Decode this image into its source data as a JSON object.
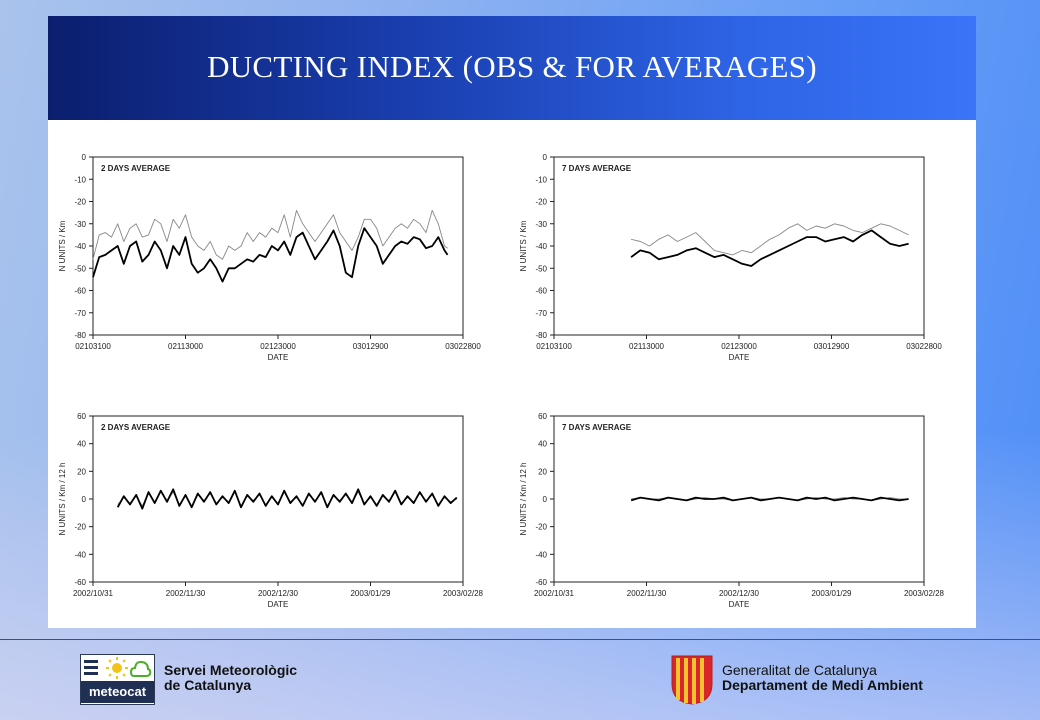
{
  "slide": {
    "title": "DUCTING INDEX (OBS & FOR AVERAGES)"
  },
  "colors": {
    "observed": "#000000",
    "forecast": "#888888",
    "title_bar": "#1a3fb0",
    "text": "#111111"
  },
  "chart_data": [
    {
      "type": "line",
      "title": "2 DAYS AVERAGE",
      "xlabel": "DATE",
      "ylabel": "N UNITS / Km",
      "ylim": [
        -80,
        0
      ],
      "yticks": [
        "0",
        "-10",
        "-20",
        "-30",
        "-40",
        "-50",
        "-60",
        "-70",
        "-80"
      ],
      "xticks": [
        "02103100",
        "02113000",
        "02123000",
        "03012900",
        "03022800"
      ],
      "xlim": [
        0,
        120
      ],
      "grid": false,
      "series": [
        {
          "values_x": [
            0,
            2,
            4,
            6,
            8,
            10,
            12,
            14,
            16,
            18,
            20,
            22,
            24,
            26,
            28,
            30,
            32,
            34,
            36,
            38,
            40,
            42,
            44,
            46,
            48,
            50,
            52,
            54,
            56,
            58,
            60,
            62,
            64,
            66,
            68,
            70,
            72,
            74,
            76,
            78,
            80,
            82,
            84,
            86,
            88,
            90,
            92,
            94,
            96,
            98,
            100,
            102,
            104,
            106,
            108,
            110,
            112,
            114,
            115
          ],
          "values": [
            -54,
            -45,
            -44,
            -42,
            -40,
            -48,
            -40,
            -38,
            -47,
            -44,
            -38,
            -42,
            -50,
            -40,
            -44,
            -36,
            -48,
            -52,
            -50,
            -46,
            -50,
            -56,
            -50,
            -50,
            -48,
            -46,
            -47,
            -44,
            -45,
            -40,
            -42,
            -38,
            -44,
            -36,
            -34,
            -40,
            -46,
            -42,
            -38,
            -33,
            -40,
            -52,
            -54,
            -40,
            -32,
            -36,
            -40,
            -48,
            -44,
            -40,
            -38,
            -39,
            -36,
            -37,
            -41,
            -40,
            -36,
            -42,
            -44
          ]
        },
        {
          "values_x": [
            0,
            2,
            4,
            6,
            8,
            10,
            12,
            14,
            16,
            18,
            20,
            22,
            24,
            26,
            28,
            30,
            32,
            34,
            36,
            38,
            40,
            42,
            44,
            46,
            48,
            50,
            52,
            54,
            56,
            58,
            60,
            62,
            64,
            66,
            68,
            70,
            72,
            74,
            76,
            78,
            80,
            82,
            84,
            86,
            88,
            90,
            92,
            94,
            96,
            98,
            100,
            102,
            104,
            106,
            108,
            110,
            112,
            114,
            115
          ],
          "values": [
            -46,
            -35,
            -34,
            -36,
            -30,
            -38,
            -32,
            -30,
            -36,
            -35,
            -28,
            -30,
            -38,
            -28,
            -32,
            -26,
            -36,
            -40,
            -42,
            -38,
            -44,
            -46,
            -40,
            -42,
            -40,
            -34,
            -38,
            -34,
            -36,
            -32,
            -34,
            -26,
            -36,
            -24,
            -30,
            -34,
            -38,
            -34,
            -30,
            -26,
            -34,
            -38,
            -42,
            -36,
            -28,
            -28,
            -32,
            -40,
            -36,
            -32,
            -30,
            -32,
            -28,
            -30,
            -34,
            -24,
            -30,
            -40,
            -41
          ]
        }
      ]
    },
    {
      "type": "line",
      "title": "7 DAYS AVERAGE",
      "xlabel": "DATE",
      "ylabel": "N UNITS / Km",
      "ylim": [
        -80,
        0
      ],
      "yticks": [
        "0",
        "-10",
        "-20",
        "-30",
        "-40",
        "-50",
        "-60",
        "-70",
        "-80"
      ],
      "xticks": [
        "02103100",
        "02113000",
        "02123000",
        "03012900",
        "03022800"
      ],
      "xlim": [
        0,
        120
      ],
      "grid": false,
      "series": [
        {
          "values_x": [
            25,
            28,
            31,
            34,
            37,
            40,
            43,
            46,
            49,
            52,
            55,
            58,
            61,
            64,
            67,
            70,
            73,
            76,
            79,
            82,
            85,
            88,
            91,
            94,
            97,
            100,
            103,
            106,
            109,
            112,
            115
          ],
          "values": [
            -45,
            -42,
            -43,
            -46,
            -45,
            -44,
            -42,
            -41,
            -43,
            -45,
            -44,
            -46,
            -48,
            -49,
            -46,
            -44,
            -42,
            -40,
            -38,
            -36,
            -36,
            -38,
            -37,
            -36,
            -38,
            -35,
            -33,
            -36,
            -39,
            -40,
            -39
          ]
        },
        {
          "values_x": [
            25,
            28,
            31,
            34,
            37,
            40,
            43,
            46,
            49,
            52,
            55,
            58,
            61,
            64,
            67,
            70,
            73,
            76,
            79,
            82,
            85,
            88,
            91,
            94,
            97,
            100,
            103,
            106,
            109,
            112,
            115
          ],
          "values": [
            -37,
            -38,
            -40,
            -37,
            -35,
            -38,
            -36,
            -34,
            -38,
            -42,
            -43,
            -44,
            -42,
            -43,
            -40,
            -37,
            -35,
            -32,
            -30,
            -33,
            -31,
            -32,
            -30,
            -31,
            -33,
            -34,
            -32,
            -30,
            -31,
            -33,
            -35
          ]
        }
      ]
    },
    {
      "type": "line",
      "title": "2 DAYS AVERAGE",
      "xlabel": "DATE",
      "ylabel": "N UNITS / Km / 12 h",
      "ylim": [
        -60,
        60
      ],
      "yticks": [
        "60",
        "40",
        "20",
        "0",
        "-20",
        "-40",
        "-60"
      ],
      "xticks": [
        "2002/10/31",
        "2002/11/30",
        "2002/12/30",
        "2003/01/29",
        "2003/02/28"
      ],
      "xlim": [
        0,
        120
      ],
      "grid": false,
      "series": [
        {
          "values_x": [
            8,
            10,
            12,
            14,
            16,
            18,
            20,
            22,
            24,
            26,
            28,
            30,
            32,
            34,
            36,
            38,
            40,
            42,
            44,
            46,
            48,
            50,
            52,
            54,
            56,
            58,
            60,
            62,
            64,
            66,
            68,
            70,
            72,
            74,
            76,
            78,
            80,
            82,
            84,
            86,
            88,
            90,
            92,
            94,
            96,
            98,
            100,
            102,
            104,
            106,
            108,
            110,
            112,
            114,
            116,
            118
          ],
          "values": [
            -6,
            2,
            -4,
            3,
            -7,
            5,
            -3,
            6,
            -2,
            7,
            -5,
            3,
            -6,
            4,
            -2,
            5,
            -4,
            2,
            -3,
            6,
            -6,
            3,
            -2,
            4,
            -5,
            2,
            -4,
            6,
            -3,
            2,
            -5,
            4,
            -2,
            5,
            -6,
            3,
            -2,
            4,
            -3,
            7,
            -4,
            2,
            -5,
            3,
            -2,
            6,
            -4,
            2,
            -3,
            5,
            -2,
            4,
            -5,
            2,
            -3,
            1
          ]
        },
        {
          "values_x": [
            8,
            10,
            12,
            14,
            16,
            18,
            20,
            22,
            24,
            26,
            28,
            30,
            32,
            34,
            36,
            38,
            40,
            42,
            44,
            46,
            48,
            50,
            52,
            54,
            56,
            58,
            60,
            62,
            64,
            66,
            68,
            70,
            72,
            74,
            76,
            78,
            80,
            82,
            84,
            86,
            88,
            90,
            92,
            94,
            96,
            98,
            100,
            102,
            104,
            106,
            108,
            110,
            112,
            114,
            116,
            118
          ],
          "values": [
            -4,
            1,
            -3,
            2,
            -5,
            4,
            -2,
            5,
            -1,
            5,
            -4,
            2,
            -5,
            3,
            -1,
            4,
            -3,
            1,
            -2,
            5,
            -5,
            2,
            -1,
            3,
            -4,
            1,
            -3,
            5,
            -2,
            1,
            -4,
            3,
            -1,
            4,
            -5,
            2,
            -1,
            3,
            -2,
            5,
            -3,
            1,
            -4,
            2,
            -1,
            5,
            -3,
            1,
            -2,
            4,
            -1,
            3,
            -4,
            1,
            -2,
            0
          ]
        }
      ]
    },
    {
      "type": "line",
      "title": "7 DAYS AVERAGE",
      "xlabel": "DATE",
      "ylabel": "N UNITS / Km / 12 h",
      "ylim": [
        -60,
        60
      ],
      "yticks": [
        "60",
        "40",
        "20",
        "0",
        "-20",
        "-40",
        "-60"
      ],
      "xticks": [
        "2002/10/31",
        "2002/11/30",
        "2002/12/30",
        "2003/01/29",
        "2003/02/28"
      ],
      "xlim": [
        0,
        120
      ],
      "grid": false,
      "series": [
        {
          "values_x": [
            25,
            28,
            31,
            34,
            37,
            40,
            43,
            46,
            49,
            52,
            55,
            58,
            61,
            64,
            67,
            70,
            73,
            76,
            79,
            82,
            85,
            88,
            91,
            94,
            97,
            100,
            103,
            106,
            109,
            112,
            115
          ],
          "values": [
            -1,
            1,
            0,
            -1,
            1,
            0,
            -1,
            1,
            0,
            0,
            1,
            -1,
            0,
            1,
            -1,
            0,
            1,
            0,
            -1,
            1,
            0,
            1,
            -1,
            0,
            1,
            0,
            -1,
            1,
            0,
            -1,
            0
          ]
        },
        {
          "values_x": [
            25,
            28,
            31,
            34,
            37,
            40,
            43,
            46,
            49,
            52,
            55,
            58,
            61,
            64,
            67,
            70,
            73,
            76,
            79,
            82,
            85,
            88,
            91,
            94,
            97,
            100,
            103,
            106,
            109,
            112,
            115
          ],
          "values": [
            0,
            1,
            0,
            0,
            1,
            0,
            -1,
            0,
            1,
            0,
            0,
            -1,
            0,
            1,
            0,
            0,
            1,
            0,
            -1,
            0,
            1,
            0,
            0,
            1,
            0,
            0,
            -1,
            0,
            1,
            0,
            0
          ]
        }
      ]
    }
  ],
  "footer": {
    "left_org_line1": "Servei Meteorològic",
    "left_org_line2": "de Catalunya",
    "left_logo_text": "meteocat",
    "right_org_line1": "Generalitat de Catalunya",
    "right_org_line2": "Departament de Medi Ambient"
  }
}
